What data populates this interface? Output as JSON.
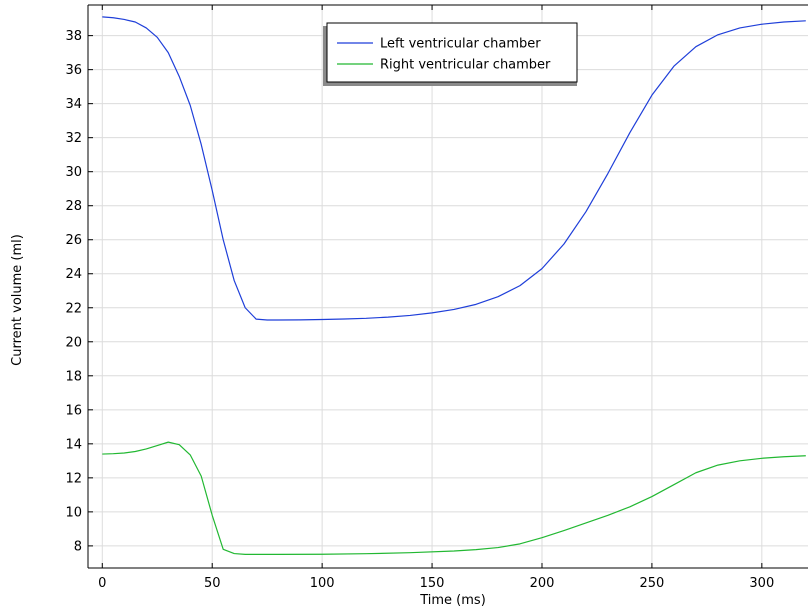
{
  "chart_data": {
    "type": "line",
    "title": "",
    "xlabel": "Time (ms)",
    "ylabel": "Current volume (ml)",
    "xlim": [
      -6.5,
      321
    ],
    "ylim": [
      6.7,
      39.8
    ],
    "x_ticks": [
      0,
      50,
      100,
      150,
      200,
      250,
      300
    ],
    "y_ticks": [
      8,
      10,
      12,
      14,
      16,
      18,
      20,
      22,
      24,
      26,
      28,
      30,
      32,
      34,
      36,
      38
    ],
    "grid": true,
    "legend_position": "top-center",
    "series": [
      {
        "name": "Left ventricular chamber",
        "color": "#1f3fd9",
        "points": [
          [
            0,
            39.1
          ],
          [
            5,
            39.05
          ],
          [
            10,
            38.95
          ],
          [
            15,
            38.8
          ],
          [
            20,
            38.45
          ],
          [
            25,
            37.9
          ],
          [
            30,
            37.0
          ],
          [
            35,
            35.6
          ],
          [
            40,
            33.9
          ],
          [
            45,
            31.6
          ],
          [
            50,
            28.9
          ],
          [
            55,
            26.0
          ],
          [
            60,
            23.6
          ],
          [
            65,
            22.0
          ],
          [
            70,
            21.33
          ],
          [
            75,
            21.28
          ],
          [
            80,
            21.28
          ],
          [
            90,
            21.29
          ],
          [
            100,
            21.31
          ],
          [
            110,
            21.34
          ],
          [
            120,
            21.38
          ],
          [
            130,
            21.45
          ],
          [
            140,
            21.55
          ],
          [
            150,
            21.7
          ],
          [
            160,
            21.9
          ],
          [
            170,
            22.2
          ],
          [
            180,
            22.65
          ],
          [
            190,
            23.3
          ],
          [
            200,
            24.3
          ],
          [
            210,
            25.75
          ],
          [
            220,
            27.65
          ],
          [
            230,
            29.9
          ],
          [
            240,
            32.3
          ],
          [
            250,
            34.5
          ],
          [
            260,
            36.2
          ],
          [
            270,
            37.35
          ],
          [
            280,
            38.05
          ],
          [
            290,
            38.45
          ],
          [
            300,
            38.67
          ],
          [
            310,
            38.8
          ],
          [
            320,
            38.87
          ]
        ]
      },
      {
        "name": "Right ventricular chamber",
        "color": "#22b832",
        "points": [
          [
            0,
            13.4
          ],
          [
            5,
            13.42
          ],
          [
            10,
            13.46
          ],
          [
            15,
            13.55
          ],
          [
            20,
            13.7
          ],
          [
            25,
            13.9
          ],
          [
            30,
            14.1
          ],
          [
            35,
            13.95
          ],
          [
            40,
            13.35
          ],
          [
            45,
            12.1
          ],
          [
            50,
            9.8
          ],
          [
            55,
            7.8
          ],
          [
            60,
            7.55
          ],
          [
            65,
            7.5
          ],
          [
            70,
            7.5
          ],
          [
            80,
            7.5
          ],
          [
            100,
            7.51
          ],
          [
            120,
            7.54
          ],
          [
            140,
            7.6
          ],
          [
            160,
            7.7
          ],
          [
            170,
            7.78
          ],
          [
            180,
            7.9
          ],
          [
            190,
            8.12
          ],
          [
            200,
            8.48
          ],
          [
            210,
            8.9
          ],
          [
            220,
            9.35
          ],
          [
            230,
            9.8
          ],
          [
            240,
            10.3
          ],
          [
            250,
            10.9
          ],
          [
            260,
            11.6
          ],
          [
            270,
            12.3
          ],
          [
            280,
            12.75
          ],
          [
            290,
            13.0
          ],
          [
            300,
            13.15
          ],
          [
            310,
            13.24
          ],
          [
            320,
            13.3
          ]
        ]
      }
    ]
  }
}
